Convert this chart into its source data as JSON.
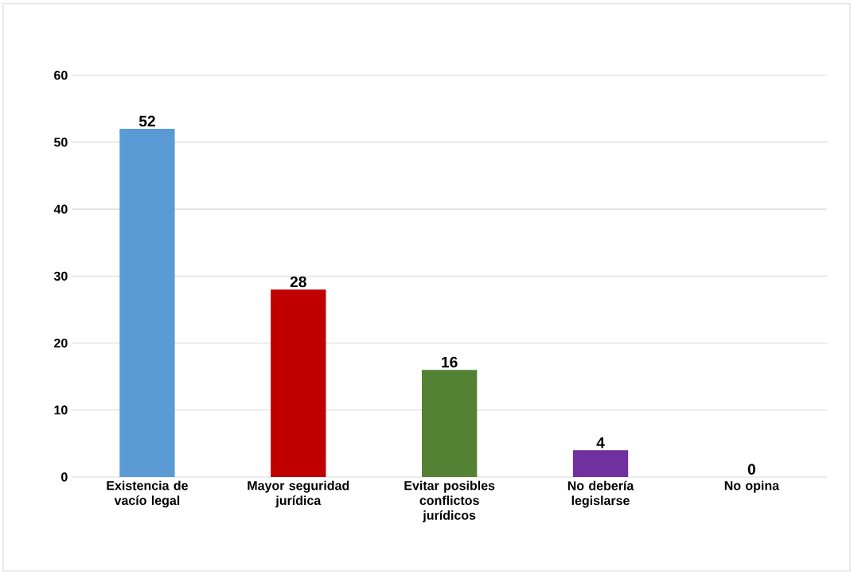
{
  "chart_data": {
    "type": "bar",
    "categories": [
      "Existencia de vacío legal",
      "Mayor seguridad jurídica",
      "Evitar posibles conflictos jurídicos",
      "No debería legislarse",
      "No opina"
    ],
    "values": [
      52,
      28,
      16,
      4,
      0
    ],
    "colors": [
      "#5b9bd5",
      "#c00000",
      "#548235",
      "#7030a0",
      "#4a7aa8"
    ],
    "ylim": [
      0,
      60
    ],
    "yticks": [
      0,
      10,
      20,
      30,
      40,
      50,
      60
    ],
    "grid": "y",
    "data_labels": true
  }
}
